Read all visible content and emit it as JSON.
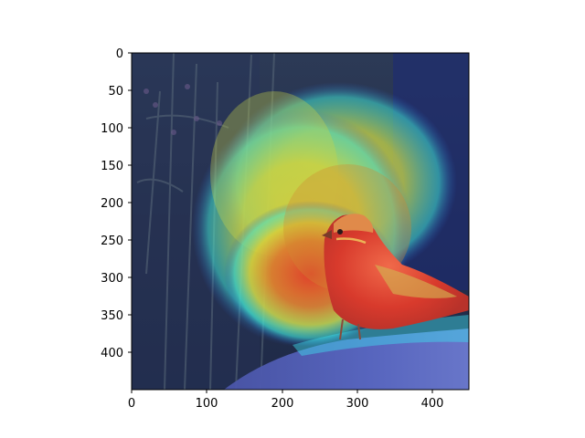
{
  "figure": {
    "image_description_kind": "grad-cam heatmap overlay on bird photograph",
    "colormap": "jet",
    "x_ticks": [
      "0",
      "100",
      "200",
      "300",
      "400"
    ],
    "y_ticks": [
      "0",
      "50",
      "100",
      "150",
      "200",
      "250",
      "300",
      "350",
      "400"
    ],
    "x_range": [
      0,
      448
    ],
    "y_range": [
      448,
      0
    ],
    "colors": {
      "background_photo": "#2a3550",
      "heat_red": "#e8382a",
      "heat_yellow": "#d9d23a",
      "heat_cyan": "#3fe0d8",
      "heat_blue": "#1f2f8a",
      "rock": "#5a66b8"
    }
  }
}
